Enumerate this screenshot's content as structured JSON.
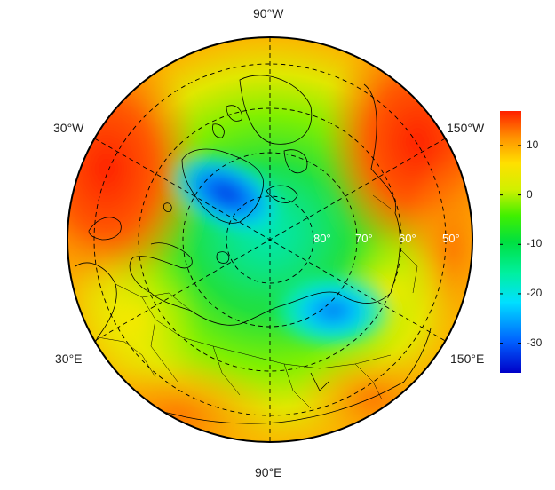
{
  "map": {
    "projection": "north-polar-stereographic",
    "lon_labels": [
      "90°W",
      "30°W",
      "150°W",
      "30°E",
      "150°E",
      "90°E"
    ],
    "lat_labels": [
      "80°",
      "70°",
      "60°",
      "50°"
    ],
    "graticule_style": "dashed",
    "coastlines": true,
    "country_borders": true
  },
  "colorbar": {
    "ticks": [
      "10",
      "0",
      "-10",
      "-20",
      "-30"
    ],
    "tick_values": [
      10,
      0,
      -10,
      -20,
      -30
    ],
    "range": [
      -36,
      17
    ],
    "colors": [
      "#0000c8",
      "#0060ff",
      "#00e0ff",
      "#00f0a0",
      "#00e040",
      "#40f000",
      "#d0f000",
      "#ffe000",
      "#ff9000",
      "#ff2000"
    ]
  }
}
